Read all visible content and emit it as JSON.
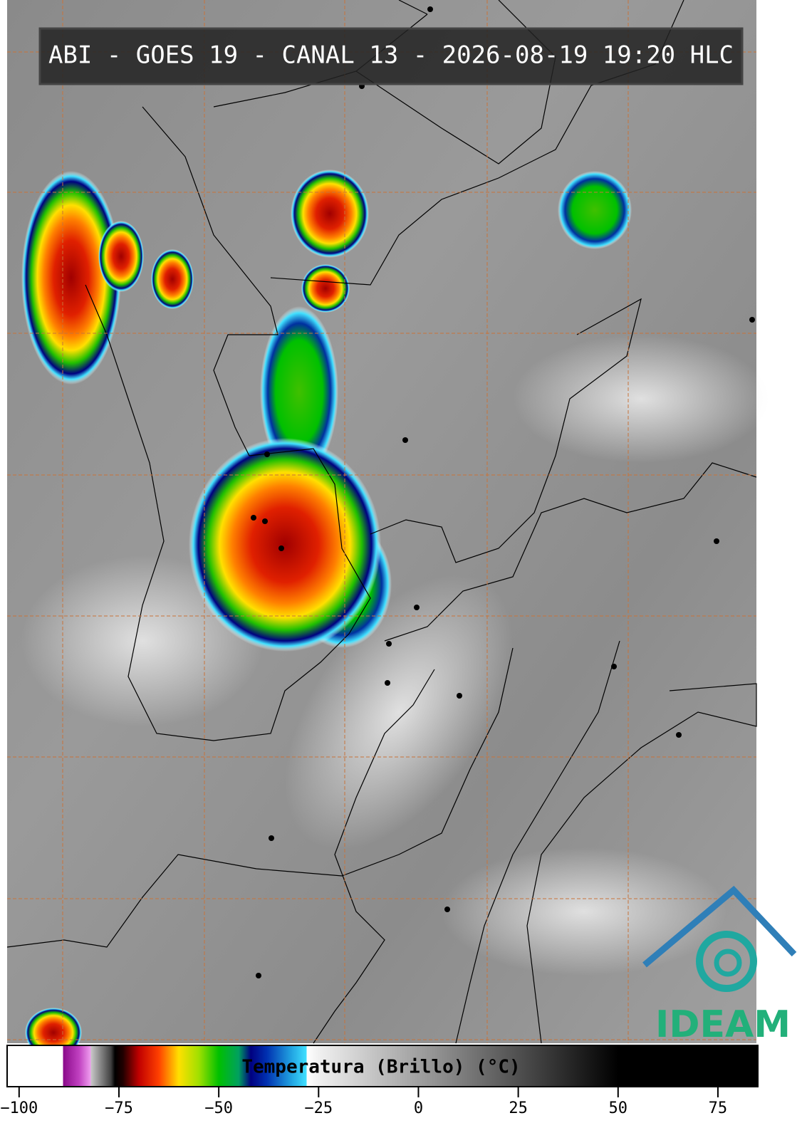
{
  "header": {
    "title": "ABI - GOES 19 - CANAL 13 - 2026-08-19 19:20 HLC"
  },
  "logo": {
    "text": "IDEAM"
  },
  "colorbar": {
    "label": "Temperatura (Brillo) (°C)",
    "lim": [
      -103,
      85
    ],
    "ticks": [
      {
        "value": -100,
        "label": "−100"
      },
      {
        "value": -75,
        "label": "−75"
      },
      {
        "value": -50,
        "label": "−50"
      },
      {
        "value": -25,
        "label": "−25"
      },
      0,
      25,
      50,
      75
    ],
    "colormap": [
      [
        -103,
        "#ffffff"
      ],
      [
        -89,
        "#ffffff"
      ],
      [
        -89,
        "#8a0a8a"
      ],
      [
        -85,
        "#c040c0"
      ],
      [
        -82,
        "#f0a0f0"
      ],
      [
        -82,
        "#c8c8c8"
      ],
      [
        -77,
        "#404040"
      ],
      [
        -76,
        "#000000"
      ],
      [
        -74,
        "#200000"
      ],
      [
        -70,
        "#c00000"
      ],
      [
        -65,
        "#ff4000"
      ],
      [
        -60,
        "#ffe000"
      ],
      [
        -55,
        "#a0e000"
      ],
      [
        -50,
        "#00c000"
      ],
      [
        -45,
        "#00a060"
      ],
      [
        -42,
        "#000080"
      ],
      [
        -38,
        "#0030b0"
      ],
      [
        -32,
        "#20a0e0"
      ],
      [
        -28,
        "#40e0ff"
      ],
      [
        -28,
        "#ffffff"
      ],
      [
        -25,
        "#f0f0f0"
      ],
      [
        50,
        "#000000"
      ],
      [
        85,
        "#000000"
      ]
    ]
  }
}
